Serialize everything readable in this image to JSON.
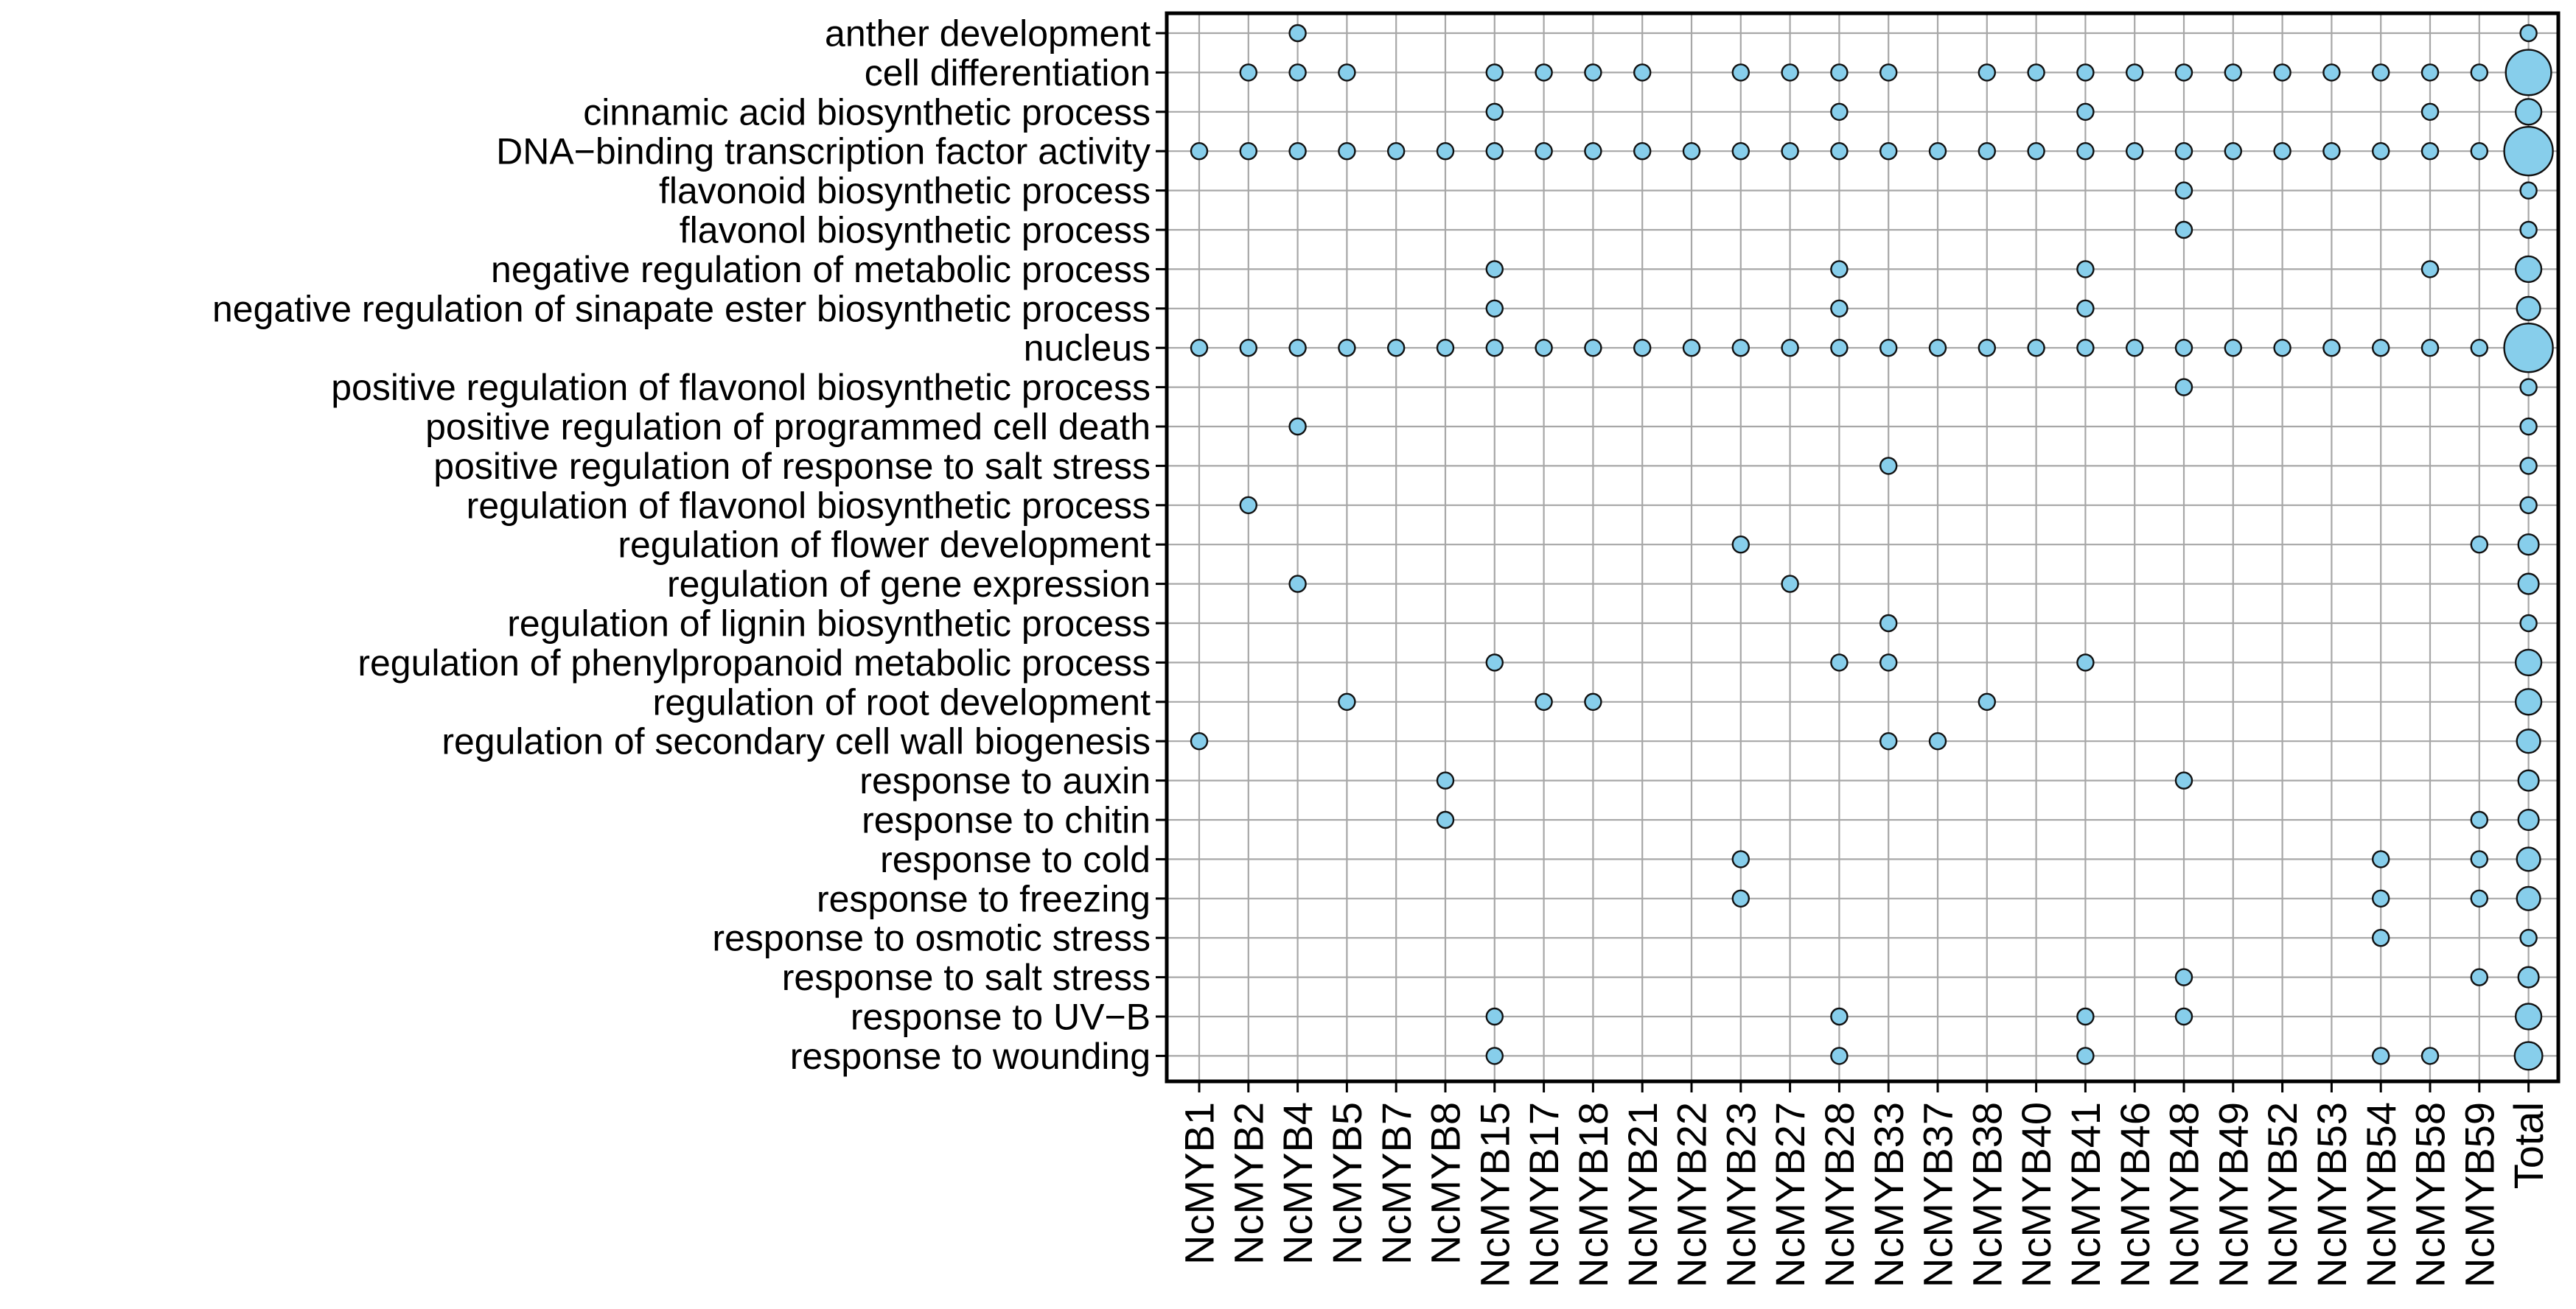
{
  "figure": {
    "background": "#ffffff",
    "plot_border_color": "#000000",
    "grid_color": "#a7a7a7",
    "tick_color": "#000000"
  },
  "chart_data": {
    "type": "scatter",
    "subtype": "bubble-matrix",
    "title": "",
    "xlabel": "",
    "ylabel": "",
    "grid": true,
    "legend_position": "none",
    "bubble_fill": "#87CEEB",
    "bubble_stroke": "#111111",
    "sizing_rule": "bubble radius = 11 * cbrt(gene_count) px; plain gene dots have count 1, Total column dot encodes number of genes annotated to the term",
    "x_categories": [
      "NcMYB1",
      "NcMYB2",
      "NcMYB4",
      "NcMYB5",
      "NcMYB7",
      "NcMYB8",
      "NcMYB15",
      "NcMYB17",
      "NcMYB18",
      "NcMYB21",
      "NcMYB22",
      "NcMYB23",
      "NcMYB27",
      "NcMYB28",
      "NcMYB33",
      "NcMYB37",
      "NcMYB38",
      "NcMYB40",
      "NcMYB41",
      "NcMYB46",
      "NcMYB48",
      "NcMYB49",
      "NcMYB52",
      "NcMYB53",
      "NcMYB54",
      "NcMYB58",
      "NcMYB59",
      "Total"
    ],
    "y_categories": [
      "anther development",
      "cell differentiation",
      "cinnamic acid biosynthetic process",
      "DNA−binding transcription factor activity",
      "flavonoid biosynthetic process",
      "flavonol biosynthetic process",
      "negative regulation of metabolic process",
      "negative regulation of sinapate ester biosynthetic process",
      "nucleus",
      "positive regulation of flavonol biosynthetic process",
      "positive regulation of programmed cell death",
      "positive regulation of response to salt stress",
      "regulation of flavonol biosynthetic process",
      "regulation of flower development",
      "regulation of gene expression",
      "regulation of lignin biosynthetic process",
      "regulation of phenylpropanoid metabolic process",
      "regulation of root development",
      "regulation of secondary cell wall biogenesis",
      "response to auxin",
      "response to chitin",
      "response to cold",
      "response to freezing",
      "response to osmotic stress",
      "response to salt stress",
      "response to UV−B",
      "response to wounding"
    ],
    "rows": [
      {
        "label": "anther development",
        "genes": [
          "NcMYB4"
        ],
        "total": 1
      },
      {
        "label": "cell differentiation",
        "genes": [
          "NcMYB2",
          "NcMYB4",
          "NcMYB5",
          "NcMYB15",
          "NcMYB17",
          "NcMYB18",
          "NcMYB21",
          "NcMYB23",
          "NcMYB27",
          "NcMYB28",
          "NcMYB33",
          "NcMYB38",
          "NcMYB40",
          "NcMYB41",
          "NcMYB46",
          "NcMYB48",
          "NcMYB49",
          "NcMYB52",
          "NcMYB53",
          "NcMYB54",
          "NcMYB58",
          "NcMYB59"
        ],
        "total": 22
      },
      {
        "label": "cinnamic acid biosynthetic process",
        "genes": [
          "NcMYB15",
          "NcMYB28",
          "NcMYB41",
          "NcMYB58"
        ],
        "total": 4
      },
      {
        "label": "DNA−binding transcription factor activity",
        "genes": [
          "NcMYB1",
          "NcMYB2",
          "NcMYB4",
          "NcMYB5",
          "NcMYB7",
          "NcMYB8",
          "NcMYB15",
          "NcMYB17",
          "NcMYB18",
          "NcMYB21",
          "NcMYB22",
          "NcMYB23",
          "NcMYB27",
          "NcMYB28",
          "NcMYB33",
          "NcMYB37",
          "NcMYB38",
          "NcMYB40",
          "NcMYB41",
          "NcMYB46",
          "NcMYB48",
          "NcMYB49",
          "NcMYB52",
          "NcMYB53",
          "NcMYB54",
          "NcMYB58",
          "NcMYB59"
        ],
        "total": 27
      },
      {
        "label": "flavonoid biosynthetic process",
        "genes": [
          "NcMYB48"
        ],
        "total": 1
      },
      {
        "label": "flavonol biosynthetic process",
        "genes": [
          "NcMYB48"
        ],
        "total": 1
      },
      {
        "label": "negative regulation of metabolic process",
        "genes": [
          "NcMYB15",
          "NcMYB28",
          "NcMYB41",
          "NcMYB58"
        ],
        "total": 4
      },
      {
        "label": "negative regulation of sinapate ester biosynthetic process",
        "genes": [
          "NcMYB15",
          "NcMYB28",
          "NcMYB41"
        ],
        "total": 3
      },
      {
        "label": "nucleus",
        "genes": [
          "NcMYB1",
          "NcMYB2",
          "NcMYB4",
          "NcMYB5",
          "NcMYB7",
          "NcMYB8",
          "NcMYB15",
          "NcMYB17",
          "NcMYB18",
          "NcMYB21",
          "NcMYB22",
          "NcMYB23",
          "NcMYB27",
          "NcMYB28",
          "NcMYB33",
          "NcMYB37",
          "NcMYB38",
          "NcMYB40",
          "NcMYB41",
          "NcMYB46",
          "NcMYB48",
          "NcMYB49",
          "NcMYB52",
          "NcMYB53",
          "NcMYB54",
          "NcMYB58",
          "NcMYB59"
        ],
        "total": 27
      },
      {
        "label": "positive regulation of flavonol biosynthetic process",
        "genes": [
          "NcMYB48"
        ],
        "total": 1
      },
      {
        "label": "positive regulation of programmed cell death",
        "genes": [
          "NcMYB4"
        ],
        "total": 1
      },
      {
        "label": "positive regulation of response to salt stress",
        "genes": [
          "NcMYB33"
        ],
        "total": 1
      },
      {
        "label": "regulation of flavonol biosynthetic process",
        "genes": [
          "NcMYB2"
        ],
        "total": 1
      },
      {
        "label": "regulation of flower development",
        "genes": [
          "NcMYB23",
          "NcMYB59"
        ],
        "total": 2
      },
      {
        "label": "regulation of gene expression",
        "genes": [
          "NcMYB4",
          "NcMYB27"
        ],
        "total": 2
      },
      {
        "label": "regulation of lignin biosynthetic process",
        "genes": [
          "NcMYB33"
        ],
        "total": 1
      },
      {
        "label": "regulation of phenylpropanoid metabolic process",
        "genes": [
          "NcMYB15",
          "NcMYB28",
          "NcMYB33",
          "NcMYB41"
        ],
        "total": 4
      },
      {
        "label": "regulation of root development",
        "genes": [
          "NcMYB5",
          "NcMYB17",
          "NcMYB18",
          "NcMYB38"
        ],
        "total": 4
      },
      {
        "label": "regulation of secondary cell wall biogenesis",
        "genes": [
          "NcMYB1",
          "NcMYB33",
          "NcMYB37"
        ],
        "total": 3
      },
      {
        "label": "response to auxin",
        "genes": [
          "NcMYB8",
          "NcMYB48"
        ],
        "total": 2
      },
      {
        "label": "response to chitin",
        "genes": [
          "NcMYB8",
          "NcMYB59"
        ],
        "total": 2
      },
      {
        "label": "response to cold",
        "genes": [
          "NcMYB23",
          "NcMYB54",
          "NcMYB59"
        ],
        "total": 3
      },
      {
        "label": "response to freezing",
        "genes": [
          "NcMYB23",
          "NcMYB54",
          "NcMYB59"
        ],
        "total": 3
      },
      {
        "label": "response to osmotic stress",
        "genes": [
          "NcMYB54"
        ],
        "total": 1
      },
      {
        "label": "response to salt stress",
        "genes": [
          "NcMYB48",
          "NcMYB59"
        ],
        "total": 2
      },
      {
        "label": "response to UV−B",
        "genes": [
          "NcMYB15",
          "NcMYB28",
          "NcMYB41",
          "NcMYB48"
        ],
        "total": 4
      },
      {
        "label": "response to wounding",
        "genes": [
          "NcMYB15",
          "NcMYB28",
          "NcMYB41",
          "NcMYB54",
          "NcMYB58"
        ],
        "total": 5
      }
    ]
  }
}
